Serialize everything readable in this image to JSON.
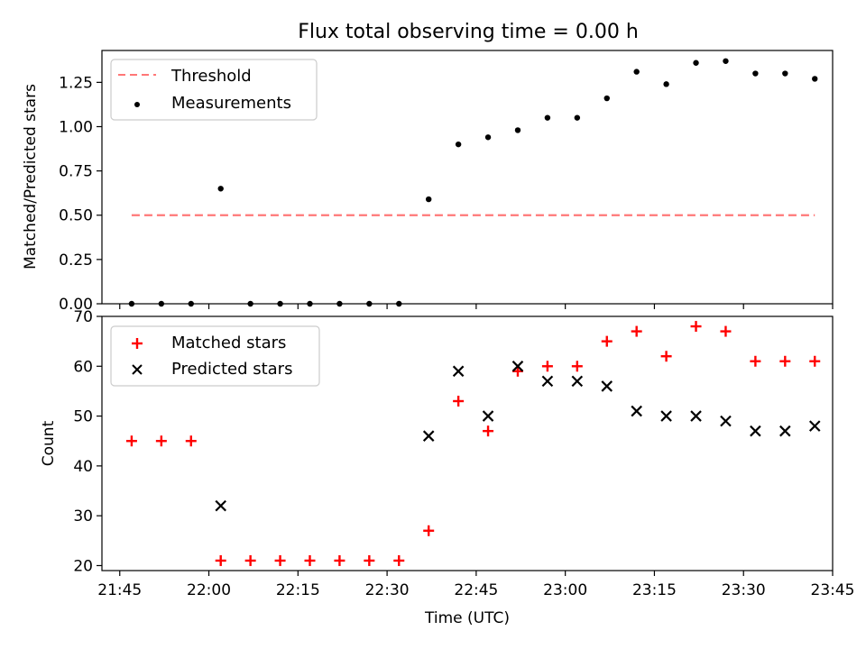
{
  "chart_data": [
    {
      "type": "scatter",
      "title": "Flux total observing time = 0.00 h",
      "xlabel": "",
      "ylabel": "Matched/Predicted stars",
      "ylim": [
        0,
        1.43
      ],
      "yticks": [
        0.0,
        0.25,
        0.5,
        0.75,
        1.0,
        1.25
      ],
      "ytick_labels": [
        "0.00",
        "0.25",
        "0.50",
        "0.75",
        "1.00",
        "1.25"
      ],
      "legend_position": "top-left",
      "series": [
        {
          "name": "Threshold",
          "style": "dashed-line",
          "color": "#ff7777",
          "x": [
            "21:47",
            "23:42"
          ],
          "y": [
            0.5,
            0.5
          ]
        },
        {
          "name": "Measurements",
          "style": "dot",
          "color": "#000000",
          "x": [
            "21:47",
            "21:52",
            "21:57",
            "22:02",
            "22:07",
            "22:12",
            "22:17",
            "22:22",
            "22:27",
            "22:32",
            "22:37",
            "22:42",
            "22:47",
            "22:52",
            "22:57",
            "23:02",
            "23:07",
            "23:12",
            "23:17",
            "23:22",
            "23:27",
            "23:32",
            "23:37",
            "23:42"
          ],
          "y": [
            0,
            0,
            0,
            0.65,
            0,
            0,
            0,
            0,
            0,
            0,
            0.59,
            0.9,
            0.94,
            0.98,
            1.05,
            1.05,
            1.16,
            1.31,
            1.24,
            1.36,
            1.37,
            1.3,
            1.3,
            1.27
          ]
        }
      ]
    },
    {
      "type": "scatter",
      "title": "",
      "xlabel": "Time (UTC)",
      "ylabel": "Count",
      "ylim": [
        19,
        70
      ],
      "yticks": [
        20,
        30,
        40,
        50,
        60,
        70
      ],
      "ytick_labels": [
        "20",
        "30",
        "40",
        "50",
        "60",
        "70"
      ],
      "xlim": [
        "21:42",
        "23:45"
      ],
      "xticks": [
        "21:45",
        "22:00",
        "22:15",
        "22:30",
        "22:45",
        "23:00",
        "23:15",
        "23:30",
        "23:45"
      ],
      "legend_position": "top-left",
      "series": [
        {
          "name": "Matched stars",
          "style": "plus",
          "color": "#ff0000",
          "x": [
            "21:47",
            "21:52",
            "21:57",
            "22:02",
            "22:07",
            "22:12",
            "22:17",
            "22:22",
            "22:27",
            "22:32",
            "22:37",
            "22:42",
            "22:47",
            "22:52",
            "22:57",
            "23:02",
            "23:07",
            "23:12",
            "23:17",
            "23:22",
            "23:27",
            "23:32",
            "23:37",
            "23:42"
          ],
          "y": [
            45,
            45,
            45,
            21,
            21,
            21,
            21,
            21,
            21,
            21,
            27,
            53,
            47,
            59,
            60,
            60,
            65,
            67,
            62,
            68,
            67,
            61,
            61,
            61
          ]
        },
        {
          "name": "Predicted stars",
          "style": "x",
          "color": "#000000",
          "x": [
            "22:02",
            "22:37",
            "22:42",
            "22:47",
            "22:52",
            "22:57",
            "23:02",
            "23:07",
            "23:12",
            "23:17",
            "23:22",
            "23:27",
            "23:32",
            "23:37",
            "23:42"
          ],
          "y": [
            32,
            46,
            59,
            50,
            60,
            57,
            57,
            56,
            51,
            50,
            50,
            49,
            47,
            47,
            48
          ]
        }
      ]
    }
  ]
}
